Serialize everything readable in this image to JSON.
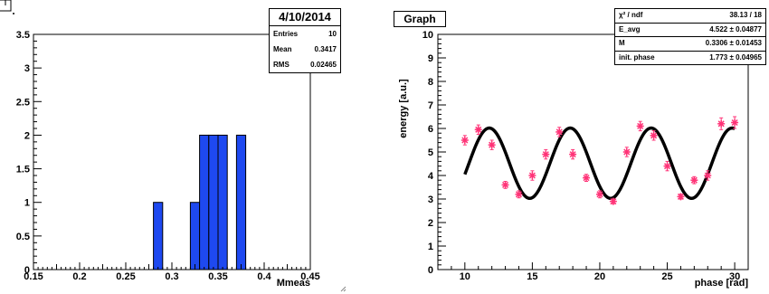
{
  "chart_data": [
    {
      "type": "bar",
      "subtype": "histogram",
      "xlabel": "Mmeas",
      "ylabel": "",
      "xlim": [
        0.15,
        0.45
      ],
      "ylim": [
        0,
        3.5
      ],
      "xticks": [
        "0.15",
        "0.2",
        "0.25",
        "0.3",
        "0.35",
        "0.4",
        "0.45"
      ],
      "yticks": [
        "0",
        "0.5",
        "1",
        "1.5",
        "2",
        "2.5",
        "3",
        "3.5"
      ],
      "bin_width": 0.01,
      "bins": [
        {
          "x0": 0.28,
          "count": 1
        },
        {
          "x0": 0.32,
          "count": 1
        },
        {
          "x0": 0.33,
          "count": 2
        },
        {
          "x0": 0.34,
          "count": 2
        },
        {
          "x0": 0.35,
          "count": 2
        },
        {
          "x0": 0.37,
          "count": 2
        }
      ],
      "fill_color": "#1e49f0",
      "stats": {
        "title": "4/10/2014",
        "rows": [
          {
            "label": "Entries",
            "value": "10"
          },
          {
            "label": "Mean",
            "value": "0.3417"
          },
          {
            "label": "RMS",
            "value": "0.02465"
          }
        ]
      }
    },
    {
      "type": "scatter",
      "title": "Graph",
      "xlabel": "phase [rad]",
      "ylabel": "energy [a.u.]",
      "xlim": [
        8,
        31
      ],
      "ylim": [
        0,
        10
      ],
      "xticks": [
        "10",
        "15",
        "20",
        "25",
        "30"
      ],
      "yticks": [
        "0",
        "1",
        "2",
        "3",
        "4",
        "5",
        "6",
        "7",
        "8",
        "9",
        "10"
      ],
      "x": [
        10,
        11,
        12,
        13,
        14,
        15,
        16,
        17,
        18,
        19,
        20,
        21,
        22,
        23,
        24,
        25,
        26,
        27,
        28,
        29,
        30
      ],
      "y": [
        5.5,
        5.95,
        5.3,
        3.6,
        3.2,
        4.0,
        4.9,
        5.85,
        4.9,
        3.9,
        3.2,
        2.9,
        5.0,
        6.1,
        5.7,
        4.4,
        3.1,
        3.8,
        4.0,
        6.2,
        6.25
      ],
      "yerr": [
        0.2,
        0.2,
        0.2,
        0.15,
        0.15,
        0.2,
        0.2,
        0.2,
        0.2,
        0.15,
        0.15,
        0.1,
        0.2,
        0.2,
        0.2,
        0.2,
        0.1,
        0.15,
        0.2,
        0.25,
        0.25
      ],
      "marker_color": "#ff3377",
      "fit": {
        "E_avg": 4.522,
        "M": 0.3306,
        "init_phase": 1.773,
        "omega": 1.0472,
        "color": "#000000"
      },
      "stats": {
        "rows": [
          {
            "label": "χ² / ndf",
            "value": "38.13 / 18"
          },
          {
            "label": "E_avg",
            "value": "4.522 ± 0.04877"
          },
          {
            "label": "M",
            "value": "0.3306 ± 0.01453"
          },
          {
            "label": "init. phase",
            "value": "1.773 ± 0.04965"
          }
        ]
      }
    }
  ]
}
